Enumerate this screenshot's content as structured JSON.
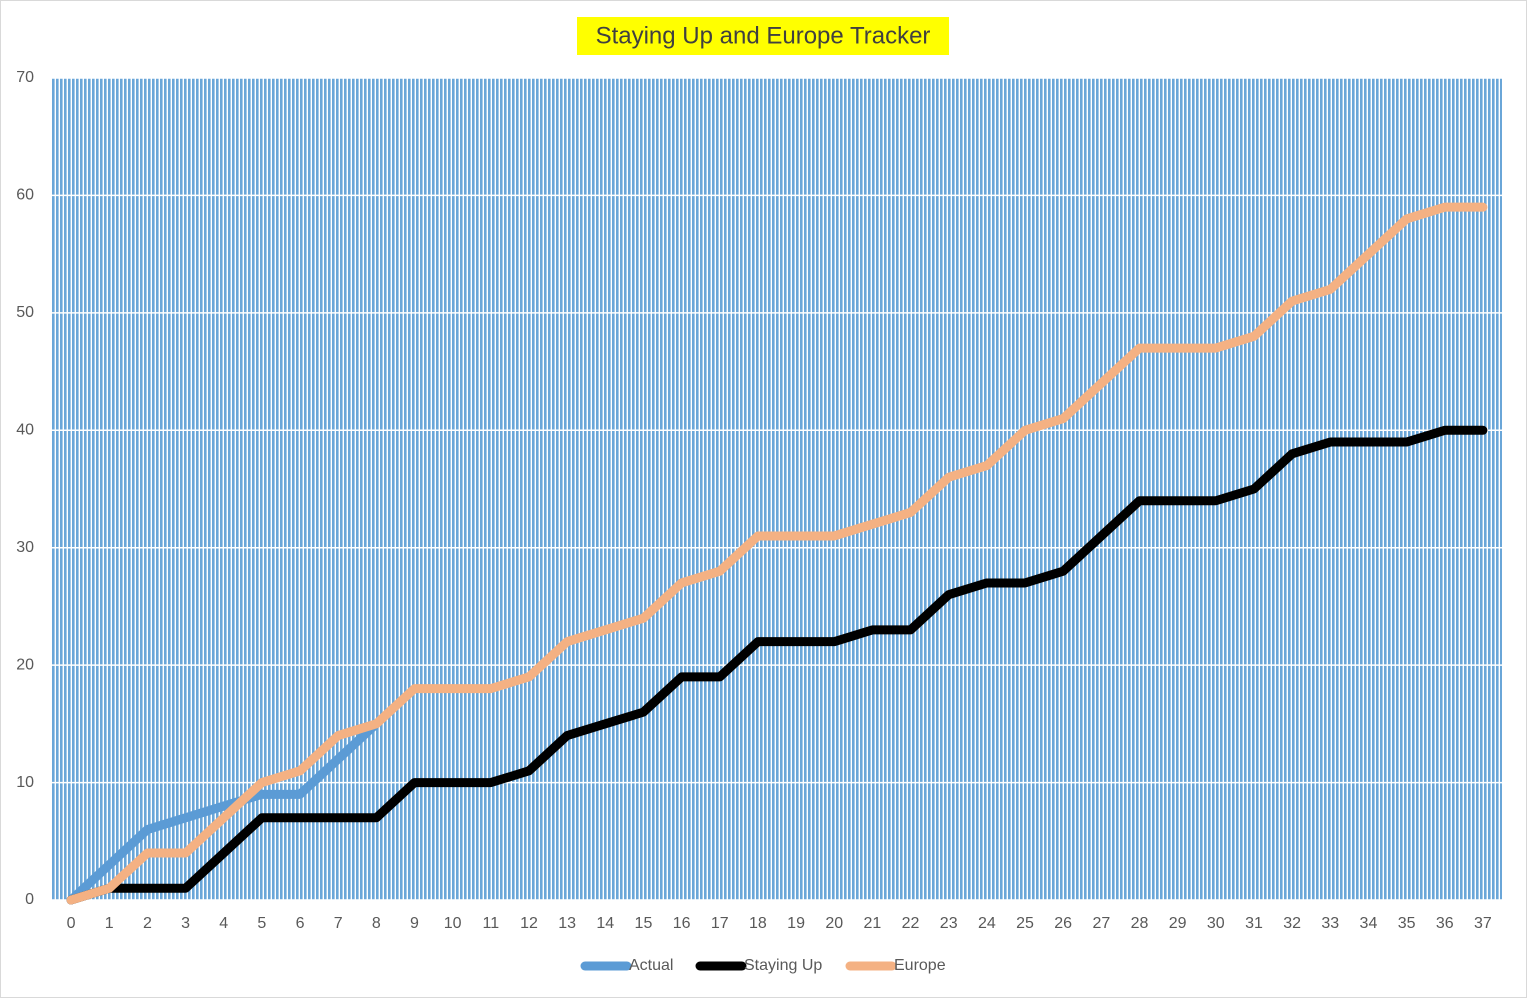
{
  "chart_data": {
    "type": "line",
    "title": "Staying Up and Europe Tracker",
    "categories": [
      "0",
      "1",
      "2",
      "3",
      "4",
      "5",
      "6",
      "7",
      "8",
      "9",
      "10",
      "11",
      "12",
      "13",
      "14",
      "15",
      "16",
      "17",
      "18",
      "19",
      "20",
      "21",
      "22",
      "23",
      "24",
      "25",
      "26",
      "27",
      "28",
      "29",
      "30",
      "31",
      "32",
      "33",
      "34",
      "35",
      "36",
      "37"
    ],
    "series": [
      {
        "name": "Actual",
        "color": "#5b9bd5",
        "values": [
          0,
          3,
          6,
          7,
          8,
          9,
          9,
          12,
          15,
          null,
          null,
          null,
          null,
          null,
          null,
          null,
          null,
          null,
          null,
          null,
          null,
          null,
          null,
          null,
          null,
          null,
          null,
          null,
          null,
          null,
          null,
          null,
          null,
          null,
          null,
          null,
          null,
          null
        ]
      },
      {
        "name": "Staying Up",
        "color": "#000000",
        "values": [
          0,
          1,
          1,
          1,
          4,
          7,
          7,
          7,
          7,
          10,
          10,
          10,
          11,
          14,
          15,
          16,
          19,
          19,
          22,
          22,
          22,
          23,
          23,
          26,
          27,
          27,
          28,
          31,
          34,
          34,
          34,
          35,
          38,
          39,
          39,
          39,
          40,
          40
        ]
      },
      {
        "name": "Europe",
        "color": "#f4b183",
        "values": [
          0,
          1,
          4,
          4,
          7,
          10,
          11,
          14,
          15,
          18,
          18,
          18,
          19,
          22,
          23,
          24,
          27,
          28,
          31,
          31,
          31,
          32,
          33,
          36,
          37,
          40,
          41,
          44,
          47,
          47,
          47,
          48,
          51,
          52,
          55,
          58,
          59,
          59
        ]
      }
    ],
    "ylim": [
      0,
      70
    ],
    "yticks": [
      0,
      10,
      20,
      30,
      40,
      50,
      60,
      70
    ],
    "grid": true,
    "legend": "bottom"
  }
}
